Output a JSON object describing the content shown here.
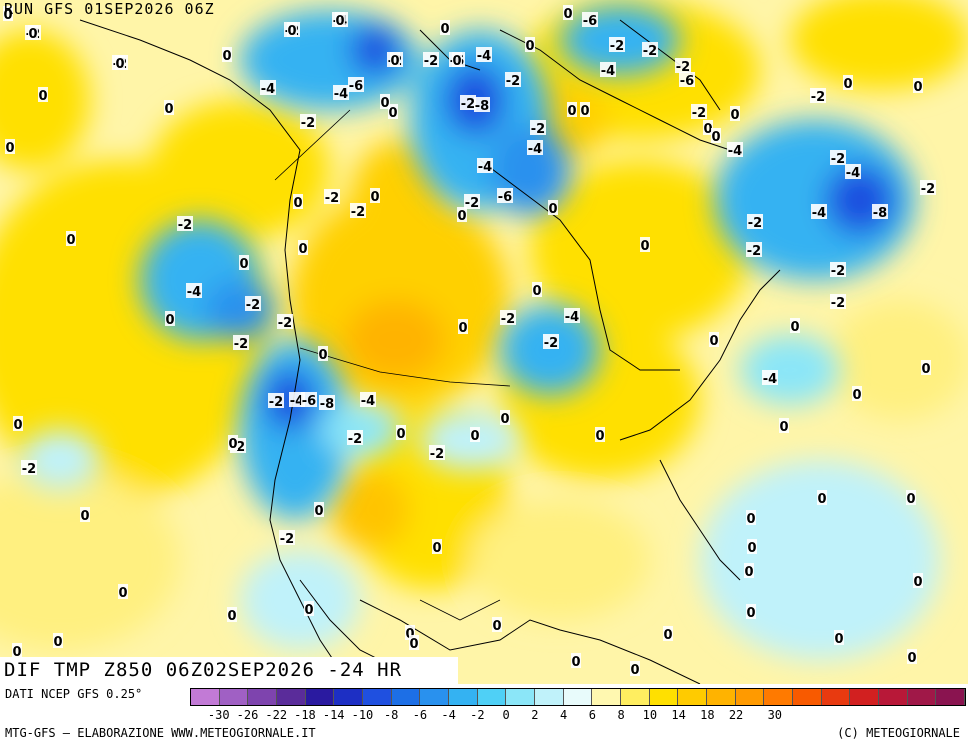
{
  "header": {
    "run_title": "RUN GFS 01SEP2026 06Z"
  },
  "field_title": "DIF TMP Z850 06Z02SEP2026 -24 HR",
  "footer": {
    "source": "DATI NCEP GFS 0.25°",
    "credit": "MTG-GFS — ELABORAZIONE WWW.METEOGIORNALE.IT",
    "copyright": "(C) METEOGIORNALE"
  },
  "legend": {
    "colors": [
      "#c27ad6",
      "#a060c4",
      "#7e44ae",
      "#5a2c9a",
      "#2a1aa0",
      "#1d2fc4",
      "#1f50e0",
      "#1d6fe6",
      "#2991ee",
      "#34b2f2",
      "#4fd0f6",
      "#8be6f8",
      "#c0f2fa",
      "#e8fbfb",
      "#fff8b0",
      "#ffee60",
      "#ffe000",
      "#ffcb00",
      "#ffb300",
      "#ff9a00",
      "#ff7a00",
      "#f85a00",
      "#e83a10",
      "#d22020",
      "#b81838",
      "#a01848",
      "#8a1450"
    ],
    "tick_labels": [
      "-30",
      "-26",
      "-22",
      "-18",
      "-14",
      "-10",
      "-8",
      "-6",
      "-4",
      "-2",
      "0",
      "2",
      "4",
      "6",
      "8",
      "10",
      "14",
      "18",
      "22",
      "30"
    ]
  },
  "map_labels": [
    {
      "t": "-2"
    },
    {
      "t": "-2"
    },
    {
      "t": "-4"
    },
    {
      "t": "-2"
    },
    {
      "t": "-2"
    },
    {
      "t": "-6"
    },
    {
      "t": "-4"
    },
    {
      "t": "-4"
    },
    {
      "t": "-6"
    },
    {
      "t": "-4"
    },
    {
      "t": "-2"
    },
    {
      "t": "-2"
    },
    {
      "t": "-2"
    },
    {
      "t": "-8"
    },
    {
      "t": "-2"
    },
    {
      "t": "-2"
    },
    {
      "t": "-4"
    },
    {
      "t": "-6"
    },
    {
      "t": "-2"
    },
    {
      "t": "-2"
    },
    {
      "t": "-2"
    },
    {
      "t": "-4"
    },
    {
      "t": "-6"
    },
    {
      "t": "-2"
    },
    {
      "t": "-2"
    },
    {
      "t": "-4"
    },
    {
      "t": "-6"
    },
    {
      "t": "-2"
    },
    {
      "t": "-4"
    },
    {
      "t": "-8"
    },
    {
      "t": "-2"
    },
    {
      "t": "-2"
    },
    {
      "t": "-4"
    },
    {
      "t": "-2"
    },
    {
      "t": "-2"
    },
    {
      "t": "-2"
    },
    {
      "t": "-4"
    },
    {
      "t": "-4"
    },
    {
      "t": "-2"
    },
    {
      "t": "-2"
    },
    {
      "t": "-2"
    },
    {
      "t": "-2"
    },
    {
      "t": "-4"
    },
    {
      "t": "-2"
    },
    {
      "t": "-4"
    },
    {
      "t": "-6"
    },
    {
      "t": "-8"
    },
    {
      "t": "-4"
    },
    {
      "t": "-2"
    },
    {
      "t": "-2"
    },
    {
      "t": "-2"
    },
    {
      "t": "-2"
    },
    {
      "t": "-2"
    },
    {
      "t": "-2"
    },
    {
      "t": "-2"
    },
    {
      "t": "-2"
    },
    {
      "t": "-2"
    },
    {
      "t": "-4"
    },
    {
      "t": "-2"
    },
    {
      "t": "0"
    },
    {
      "t": "0"
    },
    {
      "t": "0"
    },
    {
      "t": "0"
    },
    {
      "t": "0"
    },
    {
      "t": "0"
    },
    {
      "t": "0"
    },
    {
      "t": "0"
    },
    {
      "t": "0"
    },
    {
      "t": "0"
    },
    {
      "t": "0"
    },
    {
      "t": "0"
    },
    {
      "t": "0"
    },
    {
      "t": "0"
    },
    {
      "t": "0"
    },
    {
      "t": "0"
    },
    {
      "t": "0"
    },
    {
      "t": "0"
    },
    {
      "t": "0"
    },
    {
      "t": "0"
    },
    {
      "t": "0"
    },
    {
      "t": "0"
    },
    {
      "t": "0"
    },
    {
      "t": "0"
    },
    {
      "t": "0"
    },
    {
      "t": "0"
    },
    {
      "t": "0"
    },
    {
      "t": "0"
    },
    {
      "t": "0"
    },
    {
      "t": "0"
    },
    {
      "t": "0"
    },
    {
      "t": "0"
    },
    {
      "t": "0"
    },
    {
      "t": "0"
    },
    {
      "t": "0"
    },
    {
      "t": "0"
    },
    {
      "t": "0"
    },
    {
      "t": "0"
    },
    {
      "t": "0"
    },
    {
      "t": "0"
    },
    {
      "t": "0"
    },
    {
      "t": "0"
    },
    {
      "t": "0"
    },
    {
      "t": "0"
    },
    {
      "t": "0"
    },
    {
      "t": "0"
    },
    {
      "t": "0"
    },
    {
      "t": "0"
    },
    {
      "t": "0"
    },
    {
      "t": "0"
    },
    {
      "t": "0"
    },
    {
      "t": "0"
    },
    {
      "t": "0"
    },
    {
      "t": "0"
    },
    {
      "t": "0"
    },
    {
      "t": "0"
    },
    {
      "t": "0"
    },
    {
      "t": "0"
    },
    {
      "t": "0"
    },
    {
      "t": "0"
    },
    {
      "t": "0"
    },
    {
      "t": "0"
    },
    {
      "t": "0"
    },
    {
      "t": "0"
    },
    {
      "t": "0"
    },
    {
      "t": "0"
    },
    {
      "t": "0"
    },
    {
      "t": "0"
    },
    {
      "t": "0"
    }
  ]
}
